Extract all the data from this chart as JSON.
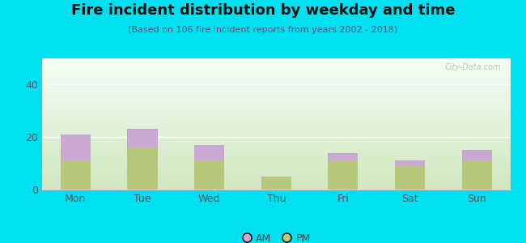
{
  "title": "Fire incident distribution by weekday and time",
  "subtitle": "(Based on 106 fire incident reports from years 2002 - 2018)",
  "days": [
    "Mon",
    "Tue",
    "Wed",
    "Thu",
    "Fri",
    "Sat",
    "Sun"
  ],
  "pm_values": [
    11,
    16,
    11,
    5,
    11,
    9,
    11
  ],
  "am_values": [
    10,
    7,
    6,
    0,
    3,
    2,
    4
  ],
  "am_color": "#c9a8d4",
  "pm_color": "#b8c87a",
  "background_outer": "#00e0f0",
  "ylim": [
    0,
    50
  ],
  "yticks": [
    0,
    20,
    40
  ],
  "bar_width": 0.45,
  "title_fontsize": 13,
  "subtitle_fontsize": 8,
  "tick_fontsize": 9,
  "legend_fontsize": 9,
  "plot_bg_top": "#f5fdf5",
  "plot_bg_bottom": "#d0e8c0",
  "watermark": "City-Data.com",
  "watermark_color": "#b0b8b0"
}
